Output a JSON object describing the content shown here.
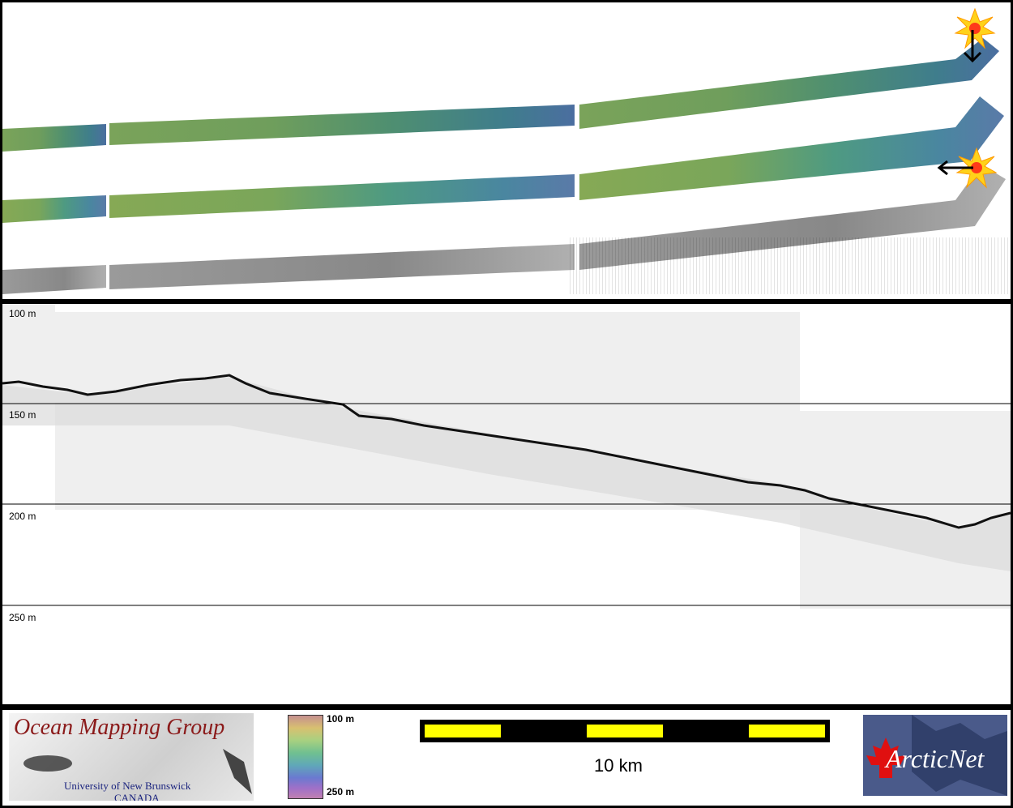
{
  "depth_axis": {
    "labels": [
      "100 m",
      "150 m",
      "200 m",
      "250 m"
    ]
  },
  "footer": {
    "omg_logo": {
      "title": "Ocean Mapping Group",
      "line1": "University of New Brunswick",
      "line2": "CANADA"
    },
    "colorbar": {
      "top_label": "100 m",
      "bottom_label": "250 m"
    },
    "scale_bar": {
      "label": "10 km"
    },
    "arcticnet_logo": {
      "name": "ArcticNet"
    }
  },
  "icons": [
    "burst-icon",
    "arrow-down-icon",
    "arrow-left-icon",
    "maple-leaf-icon"
  ],
  "colors": {
    "scale_yellow": "#ffff00",
    "omg_red": "#8b1a1a",
    "unb_blue": "#1a237e"
  }
}
